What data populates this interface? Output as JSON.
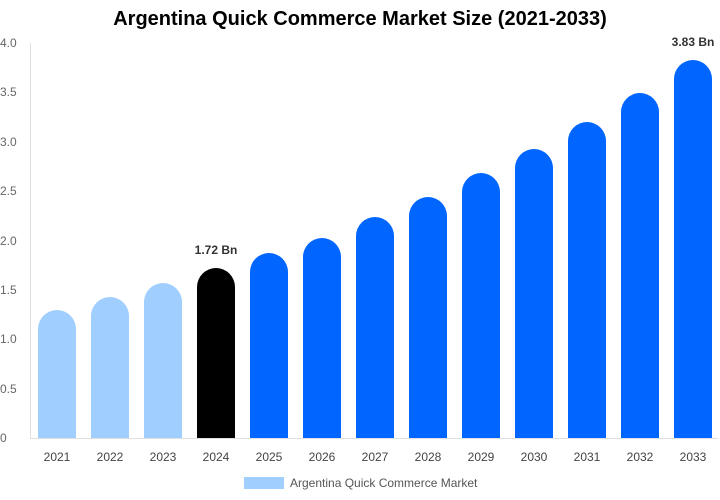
{
  "chart_data": {
    "type": "bar",
    "title": "Argentina Quick Commerce Market Size (2021-2033)",
    "xlabel": "",
    "ylabel": "",
    "ylim": [
      0,
      4.0
    ],
    "yticks": [
      "0",
      "0.5",
      "1.0",
      "1.5",
      "2.0",
      "2.5",
      "3.0",
      "3.5",
      "4.0"
    ],
    "categories": [
      "2021",
      "2022",
      "2023",
      "2024",
      "2025",
      "2026",
      "2027",
      "2028",
      "2029",
      "2030",
      "2031",
      "2032",
      "2033"
    ],
    "series": [
      {
        "name": "Argentina Quick Commerce Market",
        "values": [
          1.3,
          1.43,
          1.57,
          1.72,
          1.87,
          2.03,
          2.24,
          2.44,
          2.68,
          2.93,
          3.2,
          3.49,
          3.83
        ]
      }
    ],
    "bar_colors": [
      "#a0cfff",
      "#a0cfff",
      "#a0cfff",
      "#000000",
      "#0066ff",
      "#0066ff",
      "#0066ff",
      "#0066ff",
      "#0066ff",
      "#0066ff",
      "#0066ff",
      "#0066ff",
      "#0066ff"
    ],
    "annotations": [
      {
        "category": "2024",
        "text": "1.72 Bn"
      },
      {
        "category": "2033",
        "text": "3.83 Bn"
      }
    ],
    "grid": false,
    "legend_position": "bottom"
  },
  "legend": {
    "label": "Argentina Quick Commerce Market",
    "color": "#a0cfff"
  }
}
